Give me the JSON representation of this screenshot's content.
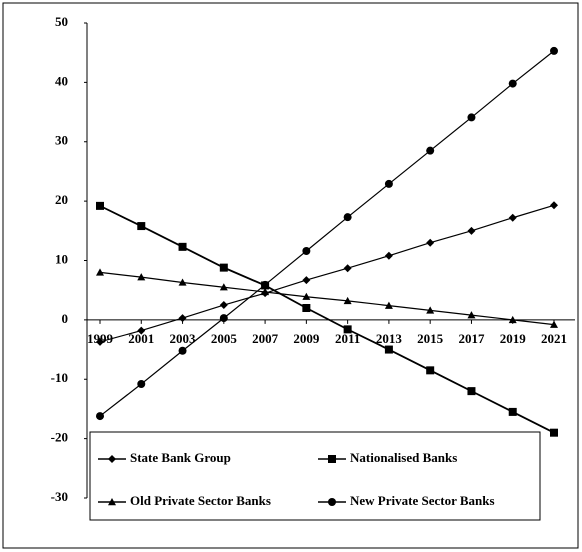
{
  "chart_data": {
    "type": "line",
    "categories": [
      "1999",
      "2001",
      "2003",
      "2005",
      "2007",
      "2009",
      "2011",
      "2013",
      "2015",
      "2017",
      "2019",
      "2021"
    ],
    "series": [
      {
        "name": "State Bank Group",
        "color": "#000000",
        "marker": "diamond",
        "values": [
          -3.7,
          -1.8,
          0.3,
          2.5,
          4.5,
          6.7,
          8.7,
          10.8,
          13,
          15,
          17.2,
          19.3
        ]
      },
      {
        "name": "Nationalised Banks",
        "color": "#000000",
        "marker": "square",
        "values": [
          19.2,
          15.8,
          12.3,
          8.8,
          5.8,
          2.0,
          -1.6,
          -5,
          -8.5,
          -12,
          -15.5,
          -19
        ]
      },
      {
        "name": "Old Private Sector Banks",
        "color": "#000000",
        "marker": "triangle",
        "values": [
          8,
          7.2,
          6.3,
          5.5,
          4.7,
          3.9,
          3.2,
          2.4,
          1.6,
          0.8,
          0,
          -0.8
        ]
      },
      {
        "name": "New Private Sector Banks",
        "color": "#000000",
        "marker": "circle",
        "values": [
          -16.2,
          -10.8,
          -5.2,
          0.3,
          5.9,
          11.6,
          17.3,
          22.9,
          28.5,
          34.1,
          39.8,
          45.3
        ]
      }
    ],
    "ylim": [
      -30,
      50
    ],
    "yticks": [
      -30,
      -20,
      -10,
      0,
      10,
      20,
      30,
      40,
      50
    ],
    "legend": "bottom"
  }
}
